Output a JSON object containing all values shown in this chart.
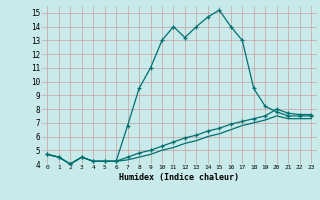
{
  "xlabel": "Humidex (Indice chaleur)",
  "bg_color": "#c8eaea",
  "grid_color": "#c8a0a0",
  "line_color": "#007070",
  "ylim": [
    4,
    15.5
  ],
  "xlim": [
    -0.5,
    23.5
  ],
  "yticks": [
    4,
    5,
    6,
    7,
    8,
    9,
    10,
    11,
    12,
    13,
    14,
    15
  ],
  "xticks": [
    0,
    1,
    2,
    3,
    4,
    5,
    6,
    7,
    8,
    9,
    10,
    11,
    12,
    13,
    14,
    15,
    16,
    17,
    18,
    19,
    20,
    21,
    22,
    23
  ],
  "curve1_x": [
    0,
    1,
    2,
    3,
    4,
    5,
    6,
    7,
    8,
    9,
    10,
    11,
    12,
    13,
    14,
    15,
    16,
    17,
    18,
    19,
    20,
    21,
    22,
    23
  ],
  "curve1_y": [
    4.7,
    4.5,
    4.0,
    4.5,
    4.2,
    4.2,
    4.2,
    6.8,
    9.5,
    11.0,
    13.0,
    14.0,
    13.2,
    14.0,
    14.7,
    15.2,
    14.0,
    13.0,
    9.5,
    8.2,
    7.8,
    7.5,
    7.5,
    7.5
  ],
  "curve2_x": [
    0,
    1,
    2,
    3,
    4,
    5,
    6,
    7,
    8,
    9,
    10,
    11,
    12,
    13,
    14,
    15,
    16,
    17,
    18,
    19,
    20,
    21,
    22,
    23
  ],
  "curve2_y": [
    4.7,
    4.5,
    4.0,
    4.5,
    4.2,
    4.2,
    4.2,
    4.5,
    4.8,
    5.0,
    5.3,
    5.6,
    5.9,
    6.1,
    6.4,
    6.6,
    6.9,
    7.1,
    7.3,
    7.5,
    8.0,
    7.7,
    7.6,
    7.6
  ],
  "curve3_x": [
    0,
    1,
    2,
    3,
    4,
    5,
    6,
    7,
    8,
    9,
    10,
    11,
    12,
    13,
    14,
    15,
    16,
    17,
    18,
    19,
    20,
    21,
    22,
    23
  ],
  "curve3_y": [
    4.7,
    4.5,
    4.0,
    4.5,
    4.2,
    4.2,
    4.2,
    4.3,
    4.5,
    4.7,
    5.0,
    5.2,
    5.5,
    5.7,
    6.0,
    6.2,
    6.5,
    6.8,
    7.0,
    7.2,
    7.5,
    7.3,
    7.3,
    7.3
  ]
}
